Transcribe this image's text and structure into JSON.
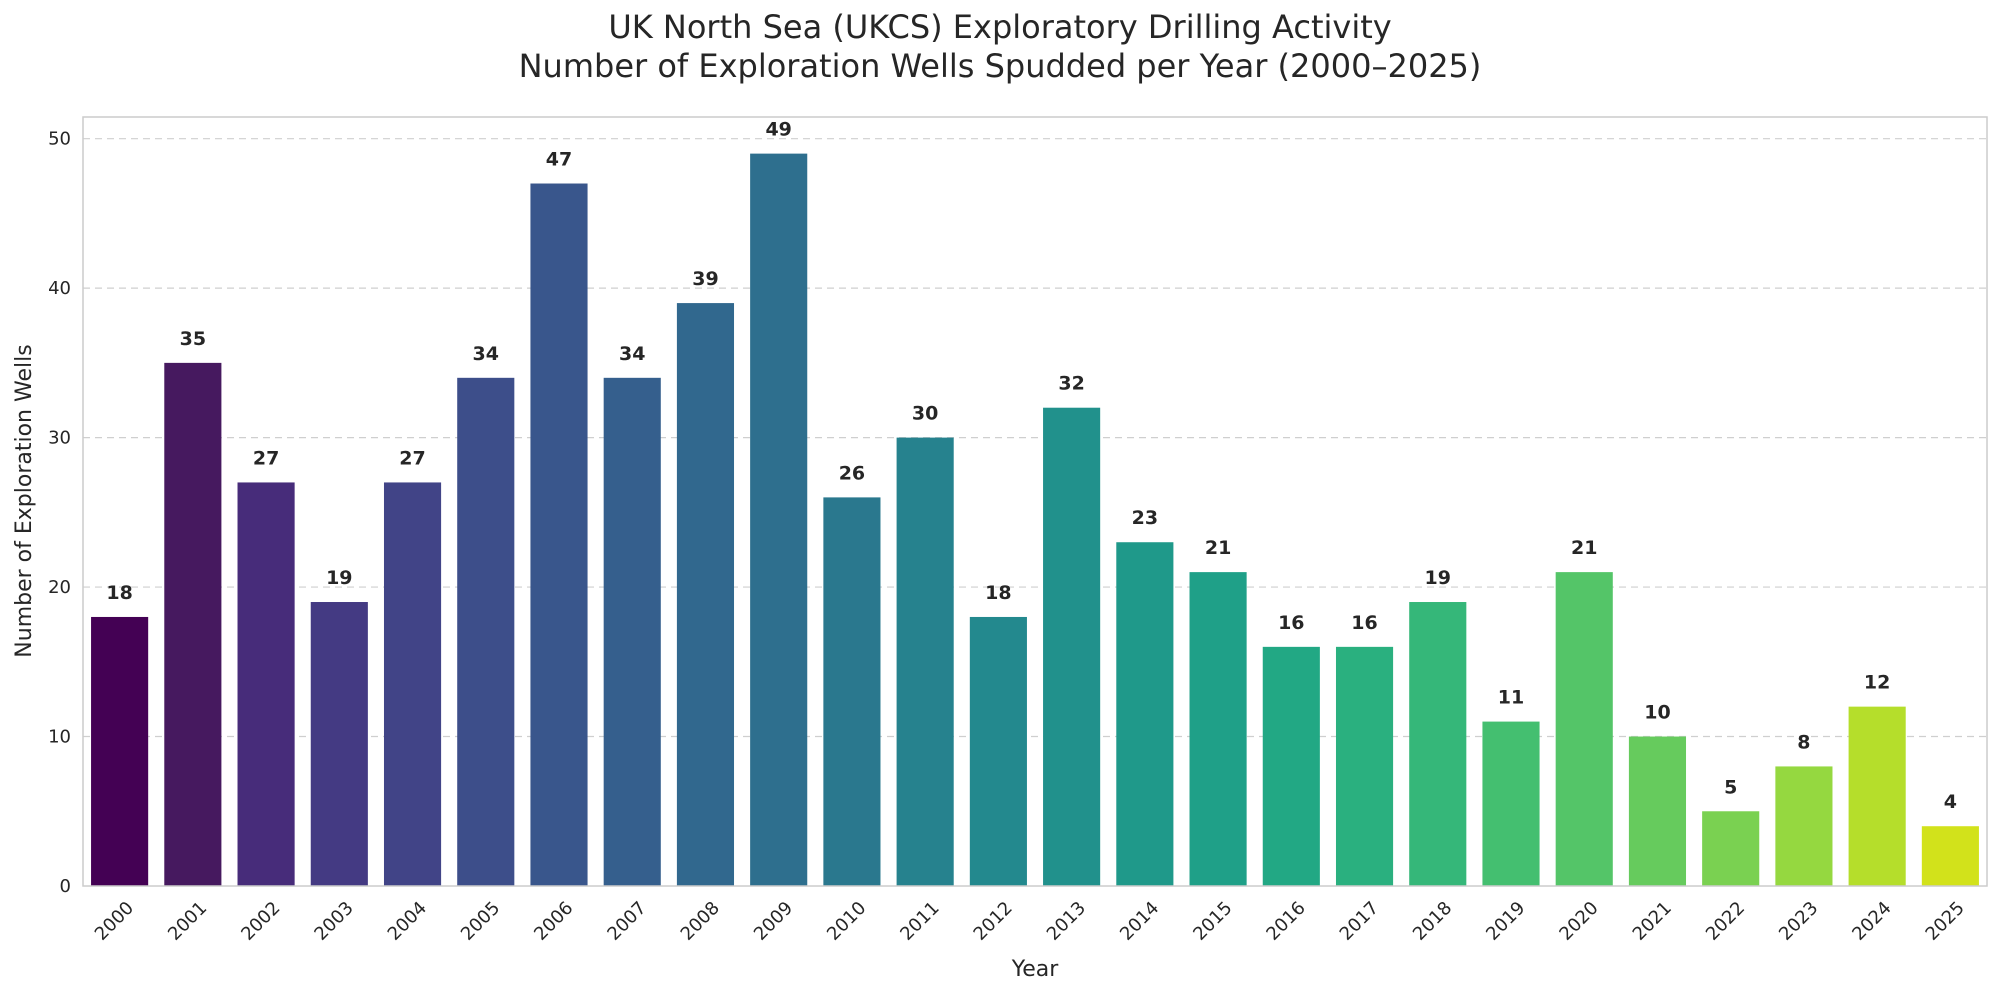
{
  "chart_data": {
    "type": "bar",
    "title": "UK North Sea (UKCS) Exploratory Drilling Activity",
    "subtitle": "Number of Exploration Wells Spudded per Year (2000–2025)",
    "xlabel": "Year",
    "ylabel": "Number of Exploration Wells",
    "ylim": [
      0,
      51.45
    ],
    "yticks": [
      0,
      10,
      20,
      30,
      40,
      50
    ],
    "grid": true,
    "categories": [
      "2000",
      "2001",
      "2002",
      "2003",
      "2004",
      "2005",
      "2006",
      "2007",
      "2008",
      "2009",
      "2010",
      "2011",
      "2012",
      "2013",
      "2014",
      "2015",
      "2016",
      "2017",
      "2018",
      "2019",
      "2020",
      "2021",
      "2022",
      "2023",
      "2024",
      "2025"
    ],
    "values": [
      18,
      35,
      27,
      19,
      27,
      34,
      47,
      34,
      39,
      49,
      26,
      30,
      18,
      32,
      23,
      21,
      16,
      16,
      19,
      11,
      21,
      10,
      5,
      8,
      12,
      4
    ],
    "colors": [
      "#440154",
      "#46195f",
      "#472c7a",
      "#443a83",
      "#414487",
      "#3d4e8a",
      "#39568c",
      "#355f8d",
      "#31688e",
      "#2e6f8e",
      "#2a788e",
      "#26828e",
      "#23898e",
      "#21918c",
      "#1f998a",
      "#1fa088",
      "#22a884",
      "#2ab07f",
      "#35b779",
      "#44bf70",
      "#54c568",
      "#66cb5d",
      "#7ad151",
      "#95d840",
      "#b5de2b",
      "#d2e21b"
    ]
  }
}
